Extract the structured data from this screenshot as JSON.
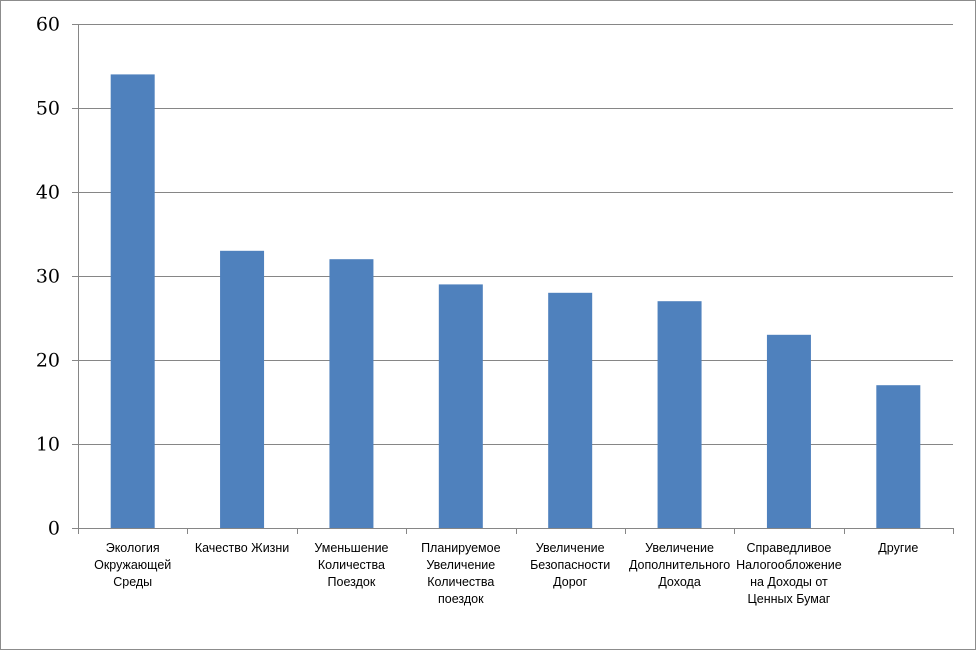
{
  "chart_data": {
    "type": "bar",
    "categories": [
      [
        "Экология",
        "Окружающей",
        "Среды"
      ],
      [
        "Качество Жизни"
      ],
      [
        "Уменьшение",
        "Количества",
        "Поездок"
      ],
      [
        "Планируемое",
        "Увеличение",
        "Количества",
        "поездок"
      ],
      [
        "Увеличение",
        "Безопасности",
        "Дорог"
      ],
      [
        "Увеличение",
        "Дополнительного",
        "Дохода"
      ],
      [
        "Справедливое",
        "Налогообложение",
        "на Доходы от",
        "Ценных Бумаг"
      ],
      [
        "Другие"
      ]
    ],
    "values": [
      54,
      33,
      32,
      29,
      28,
      27,
      23,
      17
    ],
    "ylim": [
      0,
      60
    ],
    "yticks": [
      "0",
      "10",
      "20",
      "30",
      "40",
      "50",
      "60"
    ],
    "grid": true,
    "legend": "none",
    "bar_color": "#4f81bd",
    "grid_color": "#868686"
  }
}
